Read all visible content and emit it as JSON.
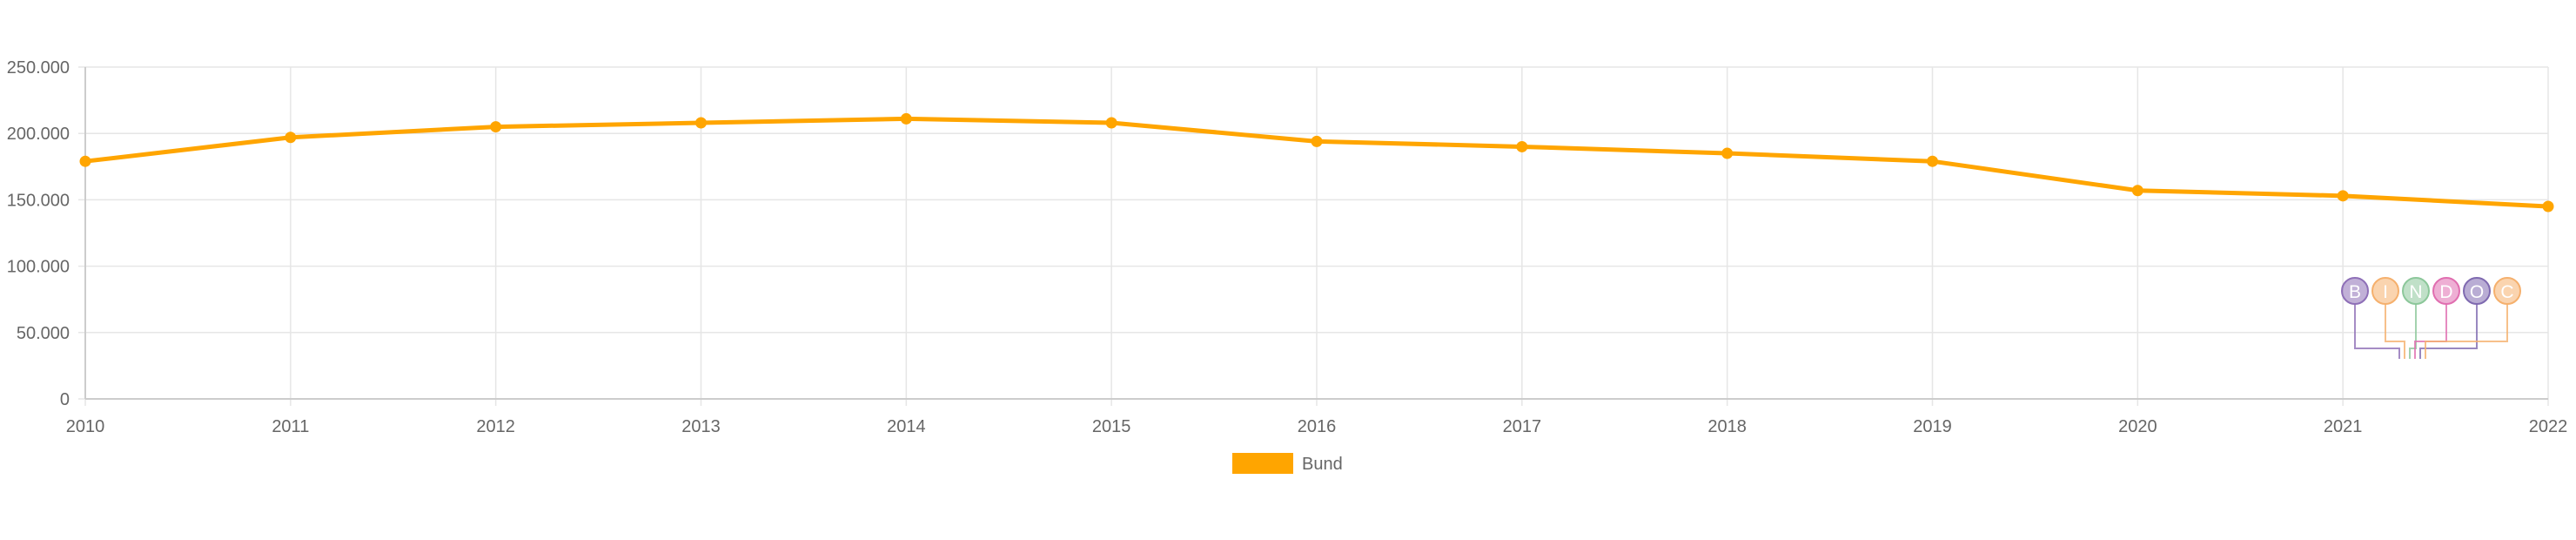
{
  "chart_data": {
    "type": "line",
    "x": [
      "2010",
      "2011",
      "2012",
      "2013",
      "2014",
      "2015",
      "2016",
      "2017",
      "2018",
      "2019",
      "2020",
      "2021",
      "2022"
    ],
    "series": [
      {
        "name": "Bund",
        "color": "#ffa500",
        "values": [
          179000,
          197000,
          205000,
          208000,
          211000,
          208000,
          194000,
          190000,
          185000,
          179000,
          157000,
          153000,
          145000
        ]
      }
    ],
    "ylim": [
      0,
      250000
    ],
    "yticks": [
      0,
      50000,
      100000,
      150000,
      200000,
      250000
    ],
    "ytick_labels": [
      "0",
      "50.000",
      "100.000",
      "150.000",
      "200.000",
      "250.000"
    ],
    "grid": true,
    "legend_position": "bottom-center",
    "title": "",
    "xlabel": "",
    "ylabel": ""
  },
  "watermark": {
    "letters": [
      "B",
      "I",
      "N",
      "D",
      "O",
      "C"
    ],
    "colors": [
      "#8e6fb7",
      "#f5b06d",
      "#8cc79a",
      "#e06eb0",
      "#7f6ab0",
      "#f5b06d"
    ]
  }
}
